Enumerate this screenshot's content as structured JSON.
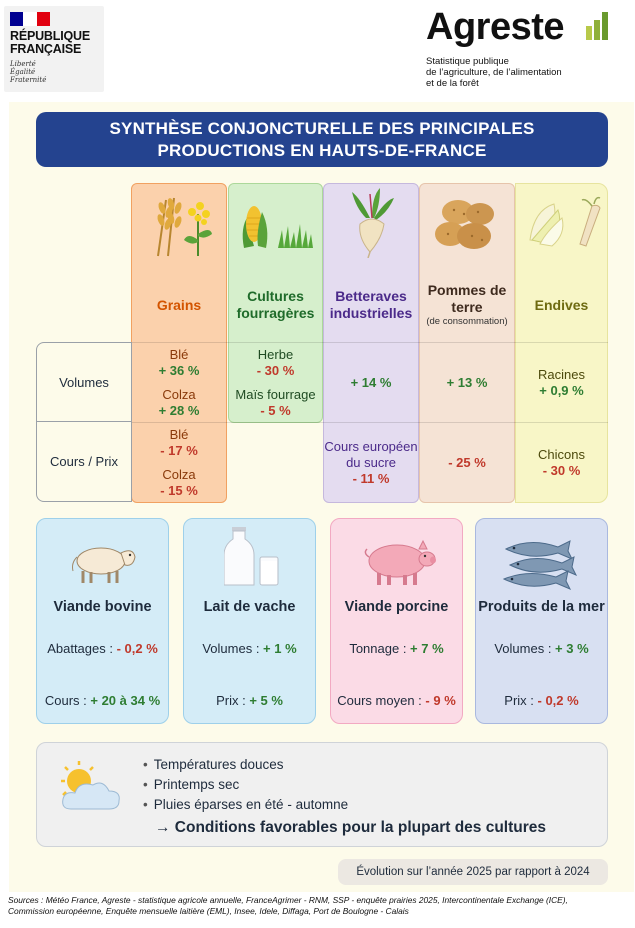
{
  "header": {
    "rf": {
      "line1": "RÉPUBLIQUE",
      "line2": "FRANÇAISE",
      "motto1": "Liberté",
      "motto2": "Égalité",
      "motto3": "Fraternité",
      "flag_colors": [
        "#000091",
        "#ffffff",
        "#e1000f"
      ]
    },
    "brand": {
      "name": "Agreste",
      "tag1": "Statistique publique",
      "tag2": "de l’agriculture, de l’alimentation",
      "tag3": "et de la forêt",
      "bar_colors": [
        "#b8c94a",
        "#8fb03a",
        "#6a9a2e"
      ]
    }
  },
  "title": {
    "line1": "SYNTHÈSE CONJONCTURELLE DES PRINCIPALES",
    "line2": "PRODUCTIONS EN HAUTS-DE-FRANCE"
  },
  "table": {
    "row_labels": {
      "volumes": "Volumes",
      "cours": "Cours / Prix"
    },
    "columns": {
      "grains": {
        "header": "Grains",
        "color": "#d35400",
        "volumes": [
          {
            "label": "Blé",
            "value": "+ 36 %"
          },
          {
            "label": "Colza",
            "value": "+ 28 %"
          }
        ],
        "cours": [
          {
            "label": "Blé",
            "value": "- 17 %"
          },
          {
            "label": "Colza",
            "value": "- 15 %"
          }
        ]
      },
      "fourrageres": {
        "header_line1": "Cultures",
        "header_line2": "fourragères",
        "color": "#1f6b2a",
        "volumes": [
          {
            "label": "Herbe",
            "value": "- 30 %"
          },
          {
            "label": "Maïs fourrage",
            "value": "- 5 %"
          }
        ]
      },
      "betteraves": {
        "header_line1": "Betteraves",
        "header_line2": "industrielles",
        "color": "#4b2a8a",
        "volumes_value": "+ 14 %",
        "cours_label_line1": "Cours européen",
        "cours_label_line2": "du sucre",
        "cours_value": "- 11 %"
      },
      "pommes": {
        "header_line1": "Pommes de",
        "header_line2": "terre",
        "header_sub": "(de consommation)",
        "color": "#3e2a1e",
        "volumes_value": "+ 13 %",
        "cours_value": "- 25 %"
      },
      "endives": {
        "header": "Endives",
        "color": "#6e6a10",
        "volumes_label": "Racines",
        "volumes_value": "+ 0,9 %",
        "cours_label": "Chicons",
        "cours_value": "- 30 %"
      }
    }
  },
  "cards": [
    {
      "title": "Viande bovine",
      "l1_label": "Abattages : ",
      "l1_value": "- 0,2 %",
      "l1_sign": "neg",
      "l2_label": "Cours : ",
      "l2_value": "+ 20 à 34 %",
      "l2_sign": "pos"
    },
    {
      "title": "Lait de vache",
      "l1_label": "Volumes : ",
      "l1_value": "+ 1 %",
      "l1_sign": "pos",
      "l2_label": "Prix : ",
      "l2_value": "+ 5 %",
      "l2_sign": "pos"
    },
    {
      "title": "Viande porcine",
      "l1_label": "Tonnage : ",
      "l1_value": "+ 7 %",
      "l1_sign": "pos",
      "l2_label": "Cours moyen : ",
      "l2_value": "- 9 %",
      "l2_sign": "neg"
    },
    {
      "title": "Produits de la mer",
      "l1_label": "Volumes : ",
      "l1_value": "+ 3 %",
      "l1_sign": "pos",
      "l2_label": "Prix : ",
      "l2_value": "- 0,2 %",
      "l2_sign": "neg"
    }
  ],
  "card_colors": [
    "#d4ecf7",
    "#d4ecf7",
    "#fbdbe6",
    "#d8e0f2"
  ],
  "card_borders": [
    "#9ed0ea",
    "#9ed0ea",
    "#f2a9c2",
    "#a9b8df"
  ],
  "weather": {
    "items": [
      "Températures douces",
      "Printemps sec",
      "Pluies éparses en été - automne"
    ],
    "conclusion": "→ Conditions favorables pour la plupart des cultures"
  },
  "evolution_note": "Évolution sur l’année 2025 par rapport à 2024",
  "sources": "Sources : Météo France, Agreste - statistique agricole annuelle, FranceAgrimer - RNM, SSP - enquête prairies 2025, Intercontinentale Exchange (ICE), Commission européenne, Enquête mensuelle laitière (EML), Insee, Idele, Diffaga, Port de Boulogne - Calais"
}
